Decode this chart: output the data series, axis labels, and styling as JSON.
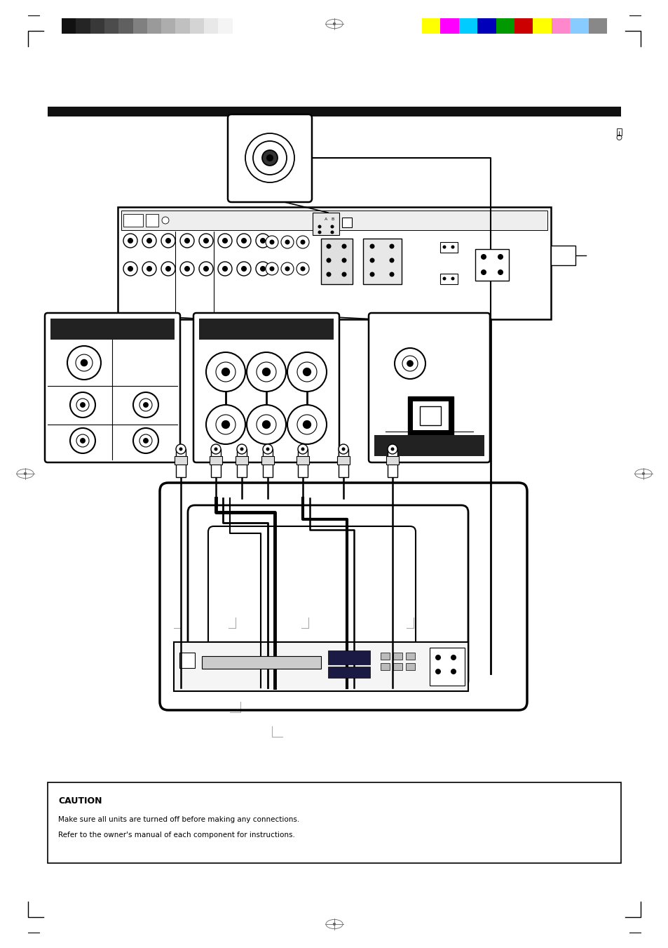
{
  "bg_color": "#ffffff",
  "page_width": 9.54,
  "page_height": 13.51,
  "dpi": 100,
  "gs_colors": [
    "#111111",
    "#252525",
    "#383838",
    "#4c4c4c",
    "#606060",
    "#808080",
    "#9a9a9a",
    "#adadad",
    "#c0c0c0",
    "#d4d4d4",
    "#e8e8e8",
    "#f4f4f4",
    "#ffffff"
  ],
  "color_bars": [
    "#ffff00",
    "#ff00ff",
    "#00ccff",
    "#0000bb",
    "#009900",
    "#cc0000",
    "#ffff00",
    "#ff88cc",
    "#88ccff",
    "#888888"
  ],
  "caution_line1": "CAUTION",
  "caution_line2": "Make sure all units are turned off before making any connections.",
  "caution_line3": "Refer to the owner's manual of each component for instructions."
}
